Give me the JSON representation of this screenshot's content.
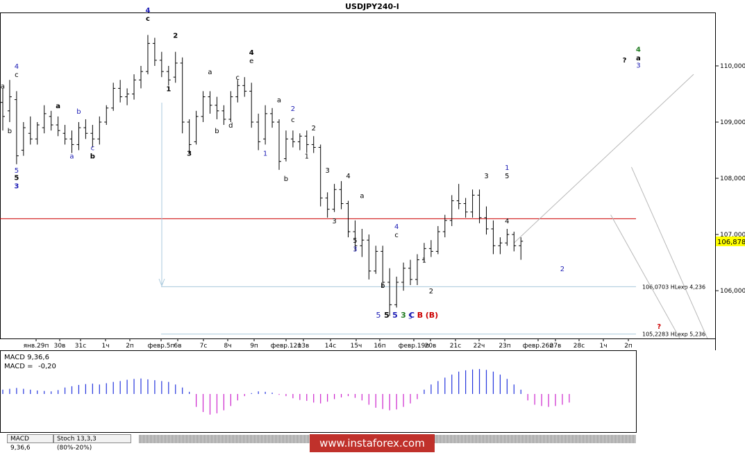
{
  "chart_data": {
    "type": "candlestick",
    "title": "USDJPY240-I",
    "symbol": "USDJPY240-I",
    "current_price": "106,878",
    "y_ticks": [
      "110,000",
      "109,000",
      "108,000",
      "107,000",
      "106,000"
    ],
    "y_tick_values": [
      110.0,
      109.0,
      108.0,
      107.0,
      106.0
    ],
    "ylim": [
      105.15,
      110.95
    ],
    "x_ticks": [
      "янв.29п",
      "30в",
      "31с",
      "1ч",
      "2п",
      "февр.5п",
      "6в",
      "7с",
      "8ч",
      "9п",
      "февр.12п",
      "13в",
      "14с",
      "15ч",
      "16п",
      "февр.19п",
      "20в",
      "21с",
      "22ч",
      "23п",
      "февр.26п",
      "27в",
      "28с",
      "1ч",
      "2п"
    ],
    "horizontal_level": 107.28,
    "annotation_lines": [
      {
        "label": "106,0703 HLexp 4,236",
        "value": 106.0703
      },
      {
        "label": "105,2283 HLexp 5,236",
        "value": 105.2283
      }
    ],
    "price_series": [
      {
        "o": 109.35,
        "h": 109.6,
        "l": 108.85,
        "c": 109.1
      },
      {
        "o": 109.2,
        "h": 109.75,
        "l": 109.0,
        "c": 109.45
      },
      {
        "o": 109.4,
        "h": 109.55,
        "l": 108.25,
        "c": 108.4
      },
      {
        "o": 108.5,
        "h": 109.0,
        "l": 108.4,
        "c": 108.9
      },
      {
        "o": 108.8,
        "h": 109.1,
        "l": 108.6,
        "c": 108.7
      },
      {
        "o": 108.7,
        "h": 109.0,
        "l": 108.6,
        "c": 108.95
      },
      {
        "o": 108.9,
        "h": 109.3,
        "l": 108.8,
        "c": 109.15
      },
      {
        "o": 109.1,
        "h": 109.2,
        "l": 108.85,
        "c": 108.95
      },
      {
        "o": 108.95,
        "h": 109.1,
        "l": 108.75,
        "c": 108.85
      },
      {
        "o": 108.8,
        "h": 108.95,
        "l": 108.6,
        "c": 108.7
      },
      {
        "o": 108.7,
        "h": 108.85,
        "l": 108.45,
        "c": 108.6
      },
      {
        "o": 108.6,
        "h": 109.0,
        "l": 108.5,
        "c": 108.9
      },
      {
        "o": 108.9,
        "h": 109.05,
        "l": 108.7,
        "c": 108.8
      },
      {
        "o": 108.8,
        "h": 108.95,
        "l": 108.55,
        "c": 108.7
      },
      {
        "o": 108.7,
        "h": 109.1,
        "l": 108.6,
        "c": 109.0
      },
      {
        "o": 109.0,
        "h": 109.3,
        "l": 108.95,
        "c": 109.25
      },
      {
        "o": 109.25,
        "h": 109.7,
        "l": 109.2,
        "c": 109.6
      },
      {
        "o": 109.6,
        "h": 109.75,
        "l": 109.35,
        "c": 109.45
      },
      {
        "o": 109.45,
        "h": 109.6,
        "l": 109.3,
        "c": 109.5
      },
      {
        "o": 109.5,
        "h": 109.85,
        "l": 109.4,
        "c": 109.75
      },
      {
        "o": 109.75,
        "h": 110.0,
        "l": 109.6,
        "c": 109.9
      },
      {
        "o": 109.9,
        "h": 110.55,
        "l": 109.85,
        "c": 110.4
      },
      {
        "o": 110.4,
        "h": 110.5,
        "l": 110.0,
        "c": 110.1
      },
      {
        "o": 110.1,
        "h": 110.25,
        "l": 109.8,
        "c": 109.9
      },
      {
        "o": 109.9,
        "h": 110.0,
        "l": 109.65,
        "c": 109.75
      },
      {
        "o": 109.8,
        "h": 110.25,
        "l": 109.7,
        "c": 110.05
      },
      {
        "o": 110.05,
        "h": 110.15,
        "l": 108.8,
        "c": 109.0
      },
      {
        "o": 109.0,
        "h": 109.05,
        "l": 108.45,
        "c": 108.6
      },
      {
        "o": 108.65,
        "h": 109.2,
        "l": 108.6,
        "c": 109.1
      },
      {
        "o": 109.1,
        "h": 109.55,
        "l": 109.0,
        "c": 109.45
      },
      {
        "o": 109.45,
        "h": 109.55,
        "l": 109.15,
        "c": 109.3
      },
      {
        "o": 109.3,
        "h": 109.45,
        "l": 109.05,
        "c": 109.2
      },
      {
        "o": 109.2,
        "h": 109.3,
        "l": 108.95,
        "c": 109.05
      },
      {
        "o": 109.05,
        "h": 109.55,
        "l": 109.0,
        "c": 109.45
      },
      {
        "o": 109.45,
        "h": 109.75,
        "l": 109.35,
        "c": 109.65
      },
      {
        "o": 109.65,
        "h": 109.8,
        "l": 109.45,
        "c": 109.55
      },
      {
        "o": 109.55,
        "h": 109.7,
        "l": 108.9,
        "c": 109.0
      },
      {
        "o": 109.0,
        "h": 109.15,
        "l": 108.5,
        "c": 108.65
      },
      {
        "o": 108.7,
        "h": 109.3,
        "l": 108.6,
        "c": 109.15
      },
      {
        "o": 109.15,
        "h": 109.25,
        "l": 108.9,
        "c": 109.0
      },
      {
        "o": 109.0,
        "h": 109.05,
        "l": 108.15,
        "c": 108.3
      },
      {
        "o": 108.35,
        "h": 108.85,
        "l": 108.3,
        "c": 108.7
      },
      {
        "o": 108.7,
        "h": 108.85,
        "l": 108.55,
        "c": 108.65
      },
      {
        "o": 108.65,
        "h": 108.8,
        "l": 108.5,
        "c": 108.75
      },
      {
        "o": 108.75,
        "h": 108.85,
        "l": 108.45,
        "c": 108.6
      },
      {
        "o": 108.6,
        "h": 108.75,
        "l": 108.45,
        "c": 108.55
      },
      {
        "o": 108.55,
        "h": 108.6,
        "l": 107.5,
        "c": 107.65
      },
      {
        "o": 107.65,
        "h": 107.75,
        "l": 107.3,
        "c": 107.45
      },
      {
        "o": 107.45,
        "h": 107.9,
        "l": 107.4,
        "c": 107.8
      },
      {
        "o": 107.8,
        "h": 107.95,
        "l": 107.45,
        "c": 107.55
      },
      {
        "o": 107.55,
        "h": 107.6,
        "l": 106.95,
        "c": 107.05
      },
      {
        "o": 107.05,
        "h": 107.25,
        "l": 106.7,
        "c": 106.8
      },
      {
        "o": 106.8,
        "h": 107.1,
        "l": 106.6,
        "c": 106.9
      },
      {
        "o": 106.9,
        "h": 107.0,
        "l": 106.2,
        "c": 106.35
      },
      {
        "o": 106.35,
        "h": 106.8,
        "l": 106.3,
        "c": 106.7
      },
      {
        "o": 106.7,
        "h": 106.8,
        "l": 106.05,
        "c": 106.15
      },
      {
        "o": 106.15,
        "h": 106.4,
        "l": 105.55,
        "c": 105.75
      },
      {
        "o": 105.75,
        "h": 106.25,
        "l": 105.7,
        "c": 106.15
      },
      {
        "o": 106.15,
        "h": 106.5,
        "l": 106.0,
        "c": 106.4
      },
      {
        "o": 106.4,
        "h": 106.55,
        "l": 106.1,
        "c": 106.2
      },
      {
        "o": 106.2,
        "h": 106.65,
        "l": 106.1,
        "c": 106.55
      },
      {
        "o": 106.55,
        "h": 106.85,
        "l": 106.5,
        "c": 106.75
      },
      {
        "o": 106.75,
        "h": 106.9,
        "l": 106.6,
        "c": 106.7
      },
      {
        "o": 106.7,
        "h": 107.15,
        "l": 106.65,
        "c": 107.05
      },
      {
        "o": 107.05,
        "h": 107.35,
        "l": 106.95,
        "c": 107.25
      },
      {
        "o": 107.25,
        "h": 107.7,
        "l": 107.15,
        "c": 107.6
      },
      {
        "o": 107.6,
        "h": 107.9,
        "l": 107.45,
        "c": 107.55
      },
      {
        "o": 107.55,
        "h": 107.65,
        "l": 107.3,
        "c": 107.4
      },
      {
        "o": 107.4,
        "h": 107.8,
        "l": 107.3,
        "c": 107.7
      },
      {
        "o": 107.7,
        "h": 107.8,
        "l": 107.2,
        "c": 107.3
      },
      {
        "o": 107.3,
        "h": 107.5,
        "l": 107.0,
        "c": 107.1
      },
      {
        "o": 107.1,
        "h": 107.25,
        "l": 106.65,
        "c": 106.8
      },
      {
        "o": 106.8,
        "h": 106.95,
        "l": 106.65,
        "c": 106.85
      },
      {
        "o": 106.85,
        "h": 107.1,
        "l": 106.8,
        "c": 107.0
      },
      {
        "o": 107.0,
        "h": 107.05,
        "l": 106.7,
        "c": 106.8
      },
      {
        "o": 106.8,
        "h": 106.95,
        "l": 106.55,
        "c": 106.88
      }
    ],
    "projection_path": [
      [
        74,
        106.85
      ],
      [
        100,
        109.85
      ]
    ],
    "projection_down_1": [
      [
        91,
        108.2
      ],
      [
        102,
        105.15
      ]
    ],
    "projection_down_2": [
      [
        88,
        107.35
      ],
      [
        98,
        105.15
      ]
    ],
    "indicator": {
      "name": "MACD 9,36,6",
      "label": "MACD",
      "value_text": "-0,20",
      "histogram": [
        0.1,
        0.12,
        0.14,
        0.12,
        0.1,
        0.08,
        0.07,
        0.06,
        0.09,
        0.15,
        0.18,
        0.21,
        0.23,
        0.24,
        0.22,
        0.25,
        0.28,
        0.3,
        0.33,
        0.35,
        0.36,
        0.34,
        0.32,
        0.3,
        0.28,
        0.22,
        0.15,
        0.05,
        -0.3,
        -0.42,
        -0.48,
        -0.45,
        -0.38,
        -0.28,
        -0.15,
        -0.05,
        0.02,
        0.06,
        0.05,
        0.03,
        -0.02,
        -0.05,
        -0.1,
        -0.14,
        -0.16,
        -0.2,
        -0.22,
        -0.18,
        -0.12,
        -0.08,
        -0.05,
        -0.09,
        -0.15,
        -0.25,
        -0.32,
        -0.35,
        -0.38,
        -0.36,
        -0.3,
        -0.22,
        -0.12,
        0.1,
        0.22,
        0.3,
        0.38,
        0.45,
        0.52,
        0.55,
        0.57,
        0.58,
        0.56,
        0.52,
        0.45,
        0.35,
        0.22,
        0.1,
        -0.15,
        -0.25,
        -0.28,
        -0.3,
        -0.28,
        -0.25,
        -0.2
      ]
    },
    "indicator_tabs": [
      "MACD 9,36,6",
      "Stoch 13,3,3 (80%-20%)"
    ],
    "wave_labels": [
      {
        "t": "a",
        "i": 0,
        "v": 109.6,
        "color": "#000000"
      },
      {
        "t": "4",
        "i": 2,
        "v": 109.95,
        "color": "#1a1ab4"
      },
      {
        "t": "c",
        "i": 2,
        "v": 109.8,
        "color": "#000000"
      },
      {
        "t": "b",
        "i": 1,
        "v": 108.8,
        "color": "#000000"
      },
      {
        "t": "5",
        "i": 2,
        "v": 108.1,
        "color": "#1a1ab4"
      },
      {
        "t": "5",
        "i": 2,
        "v": 107.97,
        "color": "#000000",
        "bold": true
      },
      {
        "t": "3",
        "i": 2,
        "v": 107.82,
        "color": "#1a1ab4",
        "bold": true
      },
      {
        "t": "a",
        "i": 8,
        "v": 109.25,
        "color": "#000000",
        "bold": true
      },
      {
        "t": "b",
        "i": 11,
        "v": 109.15,
        "color": "#1a1ab4"
      },
      {
        "t": "c",
        "i": 13,
        "v": 108.5,
        "color": "#1a1ab4"
      },
      {
        "t": "a",
        "i": 10,
        "v": 108.35,
        "color": "#1a1ab4"
      },
      {
        "t": "b",
        "i": 13,
        "v": 108.35,
        "color": "#000000",
        "bold": true
      },
      {
        "t": "4",
        "i": 21,
        "v": 110.95,
        "color": "#1a1ab4",
        "bold": true
      },
      {
        "t": "c",
        "i": 21,
        "v": 110.8,
        "color": "#000000",
        "bold": true
      },
      {
        "t": "2",
        "i": 25,
        "v": 110.5,
        "color": "#000000",
        "bold": true
      },
      {
        "t": "1",
        "i": 24,
        "v": 109.55,
        "color": "#000000",
        "bold": true
      },
      {
        "t": "3",
        "i": 27,
        "v": 108.4,
        "color": "#000000",
        "bold": true
      },
      {
        "t": "a",
        "i": 30,
        "v": 109.85,
        "color": "#000000"
      },
      {
        "t": "b",
        "i": 31,
        "v": 108.8,
        "color": "#000000"
      },
      {
        "t": "c",
        "i": 34,
        "v": 109.75,
        "color": "#000000"
      },
      {
        "t": "d",
        "i": 33,
        "v": 108.9,
        "color": "#000000"
      },
      {
        "t": "4",
        "i": 36,
        "v": 110.2,
        "color": "#000000",
        "bold": true
      },
      {
        "t": "e",
        "i": 36,
        "v": 110.05,
        "color": "#000000"
      },
      {
        "t": "a",
        "i": 40,
        "v": 109.35,
        "color": "#000000"
      },
      {
        "t": "2",
        "i": 42,
        "v": 109.2,
        "color": "#1a1ab4"
      },
      {
        "t": "c",
        "i": 42,
        "v": 109.0,
        "color": "#000000"
      },
      {
        "t": "1",
        "i": 38,
        "v": 108.4,
        "color": "#1a1ab4"
      },
      {
        "t": "b",
        "i": 41,
        "v": 107.95,
        "color": "#000000"
      },
      {
        "t": "2",
        "i": 45,
        "v": 108.85,
        "color": "#000000"
      },
      {
        "t": "1",
        "i": 44,
        "v": 108.35,
        "color": "#000000"
      },
      {
        "t": "3",
        "i": 47,
        "v": 108.1,
        "color": "#000000"
      },
      {
        "t": "4",
        "i": 50,
        "v": 108.0,
        "color": "#000000"
      },
      {
        "t": "3",
        "i": 48,
        "v": 107.2,
        "color": "#000000"
      },
      {
        "t": "a",
        "i": 52,
        "v": 107.65,
        "color": "#000000"
      },
      {
        "t": "5",
        "i": 51,
        "v": 106.85,
        "color": "#000000"
      },
      {
        "t": "3",
        "i": 51,
        "v": 106.7,
        "color": "#1a1ab4"
      },
      {
        "t": "4",
        "i": 57,
        "v": 107.1,
        "color": "#1a1ab4"
      },
      {
        "t": "c",
        "i": 57,
        "v": 106.95,
        "color": "#000000"
      },
      {
        "t": "b",
        "i": 55,
        "v": 106.05,
        "color": "#000000"
      },
      {
        "t": "1",
        "i": 61,
        "v": 106.5,
        "color": "#000000"
      },
      {
        "t": "2",
        "i": 62,
        "v": 105.95,
        "color": "#000000"
      },
      {
        "t": "5",
        "i": 59,
        "v": 105.5,
        "color": "#1a1ab4"
      },
      {
        "t": "3",
        "i": 70,
        "v": 108.0,
        "color": "#000000"
      },
      {
        "t": "1",
        "i": 73,
        "v": 108.15,
        "color": "#1a1ab4"
      },
      {
        "t": "5",
        "i": 73,
        "v": 108.0,
        "color": "#000000"
      },
      {
        "t": "4",
        "i": 73,
        "v": 107.2,
        "color": "#000000"
      },
      {
        "t": "2",
        "i": 81,
        "v": 106.35,
        "color": "#1a1ab4"
      },
      {
        "t": "4",
        "i": 92,
        "v": 110.25,
        "color": "#1e7a1e",
        "bold": true
      },
      {
        "t": "a",
        "i": 92,
        "v": 110.1,
        "color": "#000000",
        "bold": true
      },
      {
        "t": "3",
        "i": 92,
        "v": 109.97,
        "color": "#1a1ab4"
      },
      {
        "t": "?",
        "i": 90,
        "v": 110.06,
        "color": "#000000",
        "bold": true
      },
      {
        "t": "?",
        "i": 95,
        "v": 105.32,
        "color": "#cc0000",
        "bold": true
      }
    ],
    "wave_label_row": [
      {
        "t": "5",
        "color": "#1a1ab4"
      },
      {
        "t": "5",
        "color": "#000000",
        "bold": true
      },
      {
        "t": "5",
        "color": "#1a1ab4",
        "bold": true
      },
      {
        "t": "3",
        "color": "#1e7a1e",
        "bold": true
      },
      {
        "t": "C",
        "color": "#1a1ab4",
        "bold": true
      },
      {
        "t": "B",
        "color": "#cc0000",
        "bold": true
      },
      {
        "t": "(B)",
        "color": "#cc0000",
        "bold": true
      }
    ],
    "colors": {
      "candle": "#000000",
      "level_line": "#cc0000",
      "hlexp_line": "#a8c8dc",
      "projection": "#b8b8b8",
      "macd_positive": "#2233dd",
      "macd_negative": "#cc22cc",
      "macd_value": "#cc22cc",
      "price_tag_bg": "#ffff00",
      "watermark_bg": "#c0312b"
    }
  },
  "watermark": "www.instaforex.com"
}
